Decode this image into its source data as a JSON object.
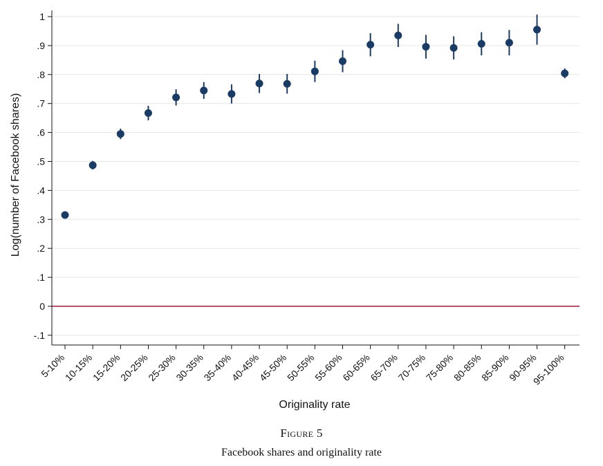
{
  "chart_data": {
    "type": "scatter",
    "xlabel": "Originality rate",
    "ylabel": "Log(number of Facebook shares)",
    "categories": [
      "5-10%",
      "10-15%",
      "15-20%",
      "20-25%",
      "25-30%",
      "30-35%",
      "35-40%",
      "40-45%",
      "45-50%",
      "50-55%",
      "55-60%",
      "60-65%",
      "65-70%",
      "70-75%",
      "75-80%",
      "80-85%",
      "85-90%",
      "90-95%",
      "95-100%"
    ],
    "series": [
      {
        "values": [
          0.315,
          0.487,
          0.595,
          0.667,
          0.721,
          0.745,
          0.733,
          0.769,
          0.768,
          0.811,
          0.846,
          0.903,
          0.935,
          0.896,
          0.892,
          0.906,
          0.91,
          0.955,
          0.804
        ],
        "ci_low": [
          0.309,
          0.472,
          0.577,
          0.642,
          0.693,
          0.716,
          0.7,
          0.736,
          0.734,
          0.774,
          0.808,
          0.863,
          0.895,
          0.855,
          0.852,
          0.866,
          0.866,
          0.903,
          0.787
        ],
        "ci_high": [
          0.321,
          0.502,
          0.613,
          0.692,
          0.749,
          0.774,
          0.766,
          0.802,
          0.802,
          0.848,
          0.884,
          0.943,
          0.975,
          0.937,
          0.932,
          0.946,
          0.954,
          1.007,
          0.821
        ]
      }
    ],
    "yticks": [
      "-.1",
      "0",
      ".1",
      ".2",
      ".3",
      ".4",
      ".5",
      ".6",
      ".7",
      ".8",
      ".9",
      "1"
    ],
    "ytick_values": [
      -0.1,
      0,
      0.1,
      0.2,
      0.3,
      0.4,
      0.5,
      0.6,
      0.7,
      0.8,
      0.9,
      1
    ],
    "ylim": [
      -0.1,
      1.0
    ],
    "reference_line": {
      "y": 0,
      "color": "#a0173a"
    },
    "grid": true,
    "colors": {
      "marker": "#1a3c64",
      "grid": "#e6e6e6",
      "axis": "#111111"
    }
  },
  "caption": {
    "figure_label": "Figure 5",
    "title": "Facebook shares and originality rate"
  }
}
